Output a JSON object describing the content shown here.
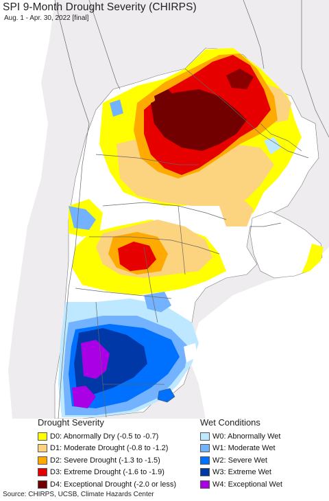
{
  "title": "SPI 9-Month Drought Severity (CHIRPS)",
  "subtitle": "Aug. 1 - Apr. 30, 2022 [final]",
  "legend_drought": {
    "heading": "Drought Severity",
    "items": [
      {
        "label": "D0: Abnormally Dry (-0.5 to -0.7)",
        "color": "#ffff00"
      },
      {
        "label": "D1: Moderate Drought (-0.8 to -1.2)",
        "color": "#fcd37f"
      },
      {
        "label": "D2: Severe Drought (-1.3 to -1.5)",
        "color": "#ffaa00"
      },
      {
        "label": "D3: Extreme Drought (-1.6 to -1.9)",
        "color": "#e60000"
      },
      {
        "label": "D4: Exceptional Drought (-2.0 or less)",
        "color": "#730000"
      }
    ]
  },
  "legend_wet": {
    "heading": "Wet Conditions",
    "items": [
      {
        "label": "W0: Abnormally Wet",
        "color": "#bee8ff"
      },
      {
        "label": "W1: Moderate Wet",
        "color": "#73b2ff"
      },
      {
        "label": "W2: Severe Wet",
        "color": "#0070ff"
      },
      {
        "label": "W3: Extreme Wet",
        "color": "#0038a8"
      },
      {
        "label": "W4: Exceptional Wet",
        "color": "#a900e6"
      }
    ]
  },
  "source": "Source: CHIRPS, UCSB, Climate Hazards Center"
}
